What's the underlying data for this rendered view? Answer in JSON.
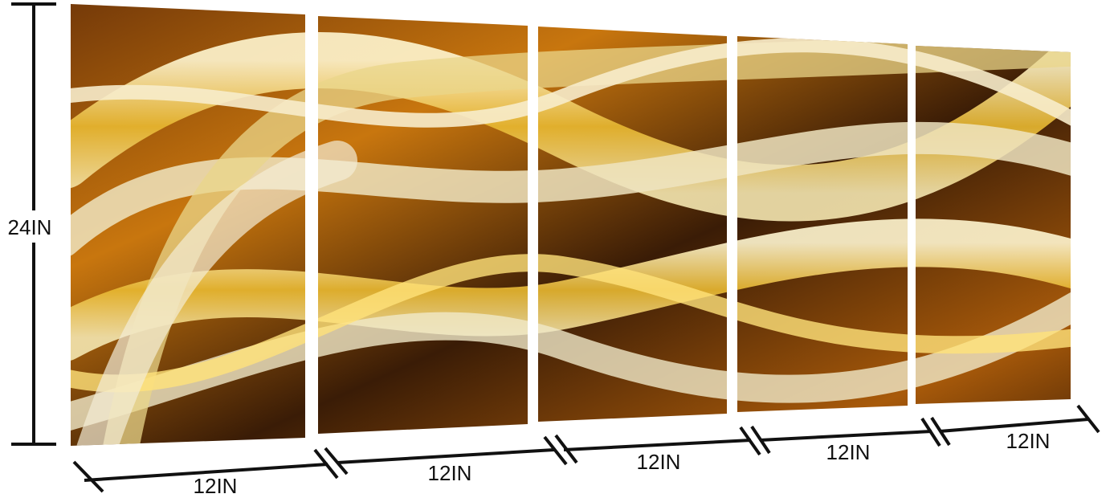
{
  "product": {
    "panel_count": 5,
    "colors": {
      "gold": "#e8b830",
      "silver": "#e9e4d2",
      "dark": "#3a1c06",
      "amber": "#c8760e"
    }
  },
  "dimensions": {
    "height_label": "24IN",
    "width_labels": [
      "12IN",
      "12IN",
      "12IN",
      "12IN",
      "12IN"
    ]
  }
}
